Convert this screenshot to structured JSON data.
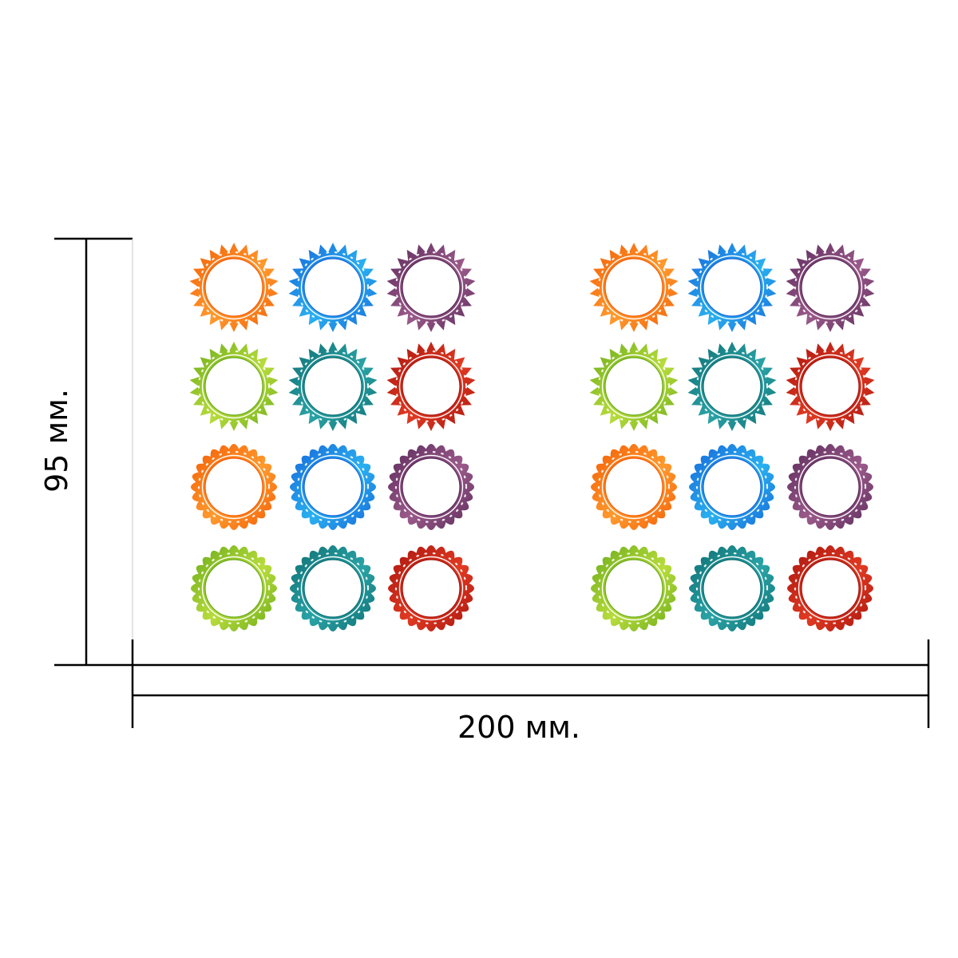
{
  "dimensions": {
    "height_label": "95 мм.",
    "width_label": "200 мм."
  },
  "sheet": {
    "panels": 2,
    "rows": 4,
    "columns_per_panel": 3,
    "row_colors": [
      [
        "orange",
        "blue",
        "purple"
      ],
      [
        "green",
        "teal",
        "red"
      ],
      [
        "orange",
        "blue",
        "purple"
      ],
      [
        "green",
        "teal",
        "red"
      ]
    ],
    "row_shapes": [
      "spiky",
      "spiky",
      "scalloped",
      "scalloped"
    ]
  },
  "palette": {
    "orange": {
      "dark": "#f25c05",
      "light": "#ff9a2e"
    },
    "blue": {
      "dark": "#1565d8",
      "light": "#2ab0f0"
    },
    "purple": {
      "dark": "#5a2a5a",
      "light": "#9a5a8a"
    },
    "green": {
      "dark": "#6aaa1a",
      "light": "#b8dc3c"
    },
    "teal": {
      "dark": "#0e6e72",
      "light": "#2aa3a6"
    },
    "red": {
      "dark": "#a8140e",
      "light": "#e03a22"
    }
  },
  "line_color": "#000000"
}
